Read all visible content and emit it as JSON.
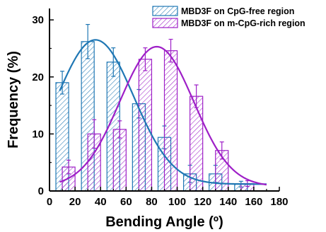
{
  "chart_data": {
    "type": "bar",
    "xlabel": "Bending Angle (º)",
    "ylabel": "Frequency (%)",
    "xlim": [
      0,
      180
    ],
    "ylim": [
      0,
      32
    ],
    "xticks": [
      "0",
      "20",
      "40",
      "60",
      "80",
      "100",
      "120",
      "140",
      "160",
      "180"
    ],
    "yticks": [
      "0",
      "10",
      "20",
      "30"
    ],
    "grid": false,
    "legend_placement": "top-right",
    "series": [
      {
        "name": "MBD3F on CpG-free region",
        "color": "#1f77b4",
        "pattern": "hatch",
        "bars": [
          {
            "x": 10,
            "value": 19.0,
            "error": 2.0
          },
          {
            "x": 30,
            "value": 26.2,
            "error": 3.0
          },
          {
            "x": 50,
            "value": 22.6,
            "error": 2.5
          },
          {
            "x": 70,
            "value": 15.3,
            "error": 2.5
          },
          {
            "x": 90,
            "value": 9.4,
            "error": 2.0
          },
          {
            "x": 110,
            "value": 3.0,
            "error": 1.5
          },
          {
            "x": 130,
            "value": 3.0,
            "error": 1.5
          },
          {
            "x": 150,
            "value": 1.2,
            "error": 0.5
          }
        ],
        "fit_curve": {
          "type": "gaussian",
          "amplitude": 25.3,
          "center": 36,
          "sigma": 30,
          "baseline": 1.2
        }
      },
      {
        "name": "MBD3F on m-CpG-rich region",
        "color": "#9e1fc7",
        "pattern": "hatch",
        "bars": [
          {
            "x": 15,
            "value": 4.2,
            "error": 1.2
          },
          {
            "x": 35,
            "value": 10.0,
            "error": 2.5
          },
          {
            "x": 55,
            "value": 10.8,
            "error": 1.5
          },
          {
            "x": 75,
            "value": 23.1,
            "error": 2.0
          },
          {
            "x": 95,
            "value": 24.6,
            "error": 2.0
          },
          {
            "x": 115,
            "value": 16.6,
            "error": 2.0
          },
          {
            "x": 135,
            "value": 7.1,
            "error": 1.5
          },
          {
            "x": 155,
            "value": 1.3,
            "error": 0.5
          }
        ],
        "fit_curve": {
          "type": "gaussian",
          "amplitude": 24.5,
          "center": 84,
          "sigma": 29,
          "baseline": 0.8
        }
      }
    ],
    "bar_width": 10
  }
}
